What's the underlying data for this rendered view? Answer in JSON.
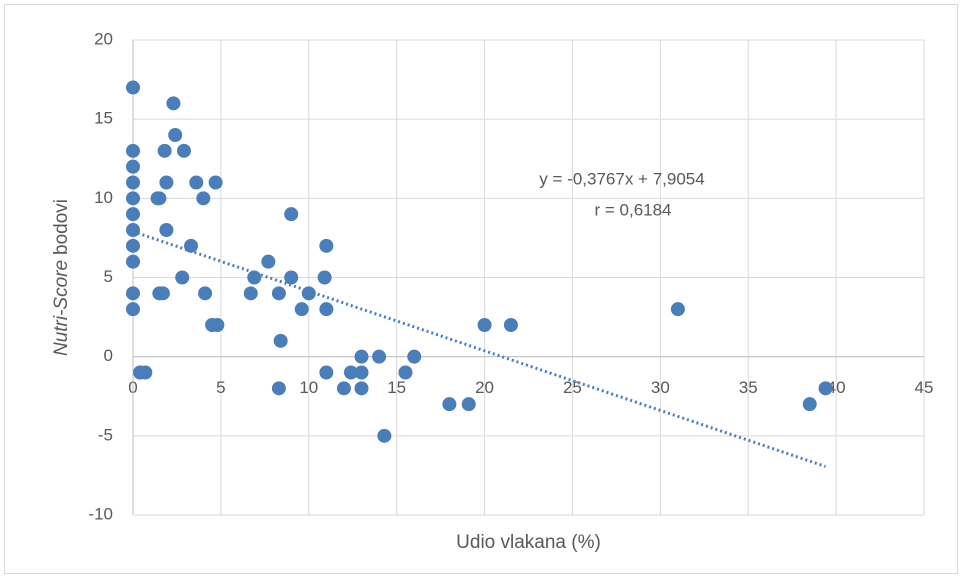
{
  "chart_data": {
    "type": "scatter",
    "xlabel": "Udio vlakana (%)",
    "ylabel": [
      "Nutri-Score",
      "bodovi"
    ],
    "annotations": [
      "y = -0,3767x + 7,9054",
      "r = 0,6184"
    ],
    "trendline": {
      "slope": -0.3767,
      "intercept": 7.9054,
      "xrange": [
        0,
        39.4
      ],
      "color": "#4a7ebb"
    },
    "series": [
      {
        "color": "#4a7ebb",
        "x": [
          0,
          0,
          0,
          0,
          0,
          0,
          0,
          0,
          0,
          0,
          0,
          0.4,
          0.7,
          1.4,
          1.5,
          1.5,
          1.7,
          1.8,
          1.9,
          1.9,
          2.3,
          2.4,
          2.9,
          2.8,
          3.3,
          3.6,
          4.0,
          4.1,
          4.5,
          4.8,
          4.7,
          6.7,
          6.9,
          7.7,
          8.3,
          8.3,
          8.4,
          9.0,
          9.0,
          9.6,
          10.0,
          11.0,
          10.9,
          11.0,
          11.0,
          12.0,
          12.4,
          13.0,
          13.0,
          13.0,
          14.0,
          14.3,
          15.5,
          16.0,
          18.0,
          19.1,
          20.0,
          21.5,
          31.0,
          38.5,
          39.4
        ],
        "values": [
          17,
          13,
          12,
          11,
          10,
          9,
          8,
          7,
          6,
          4,
          3,
          -1,
          -1,
          10,
          10,
          4,
          4,
          13,
          11,
          8,
          16,
          14,
          13,
          5,
          7,
          11,
          10,
          4,
          2,
          2,
          11,
          4,
          5,
          6,
          4,
          -2,
          1,
          9,
          5,
          3,
          4,
          7,
          5,
          3,
          -1,
          -2,
          -1,
          0,
          -1,
          -2,
          0,
          -5,
          -1,
          0,
          -3,
          -3,
          2,
          2,
          3,
          -3,
          -2
        ]
      }
    ],
    "xlim": [
      0,
      45
    ],
    "xticks": [
      0,
      5,
      10,
      15,
      20,
      25,
      30,
      35,
      40,
      45
    ],
    "ylim": [
      -10,
      20
    ],
    "yticks": [
      -10,
      -5,
      0,
      5,
      10,
      15,
      20
    ],
    "grid": true
  }
}
